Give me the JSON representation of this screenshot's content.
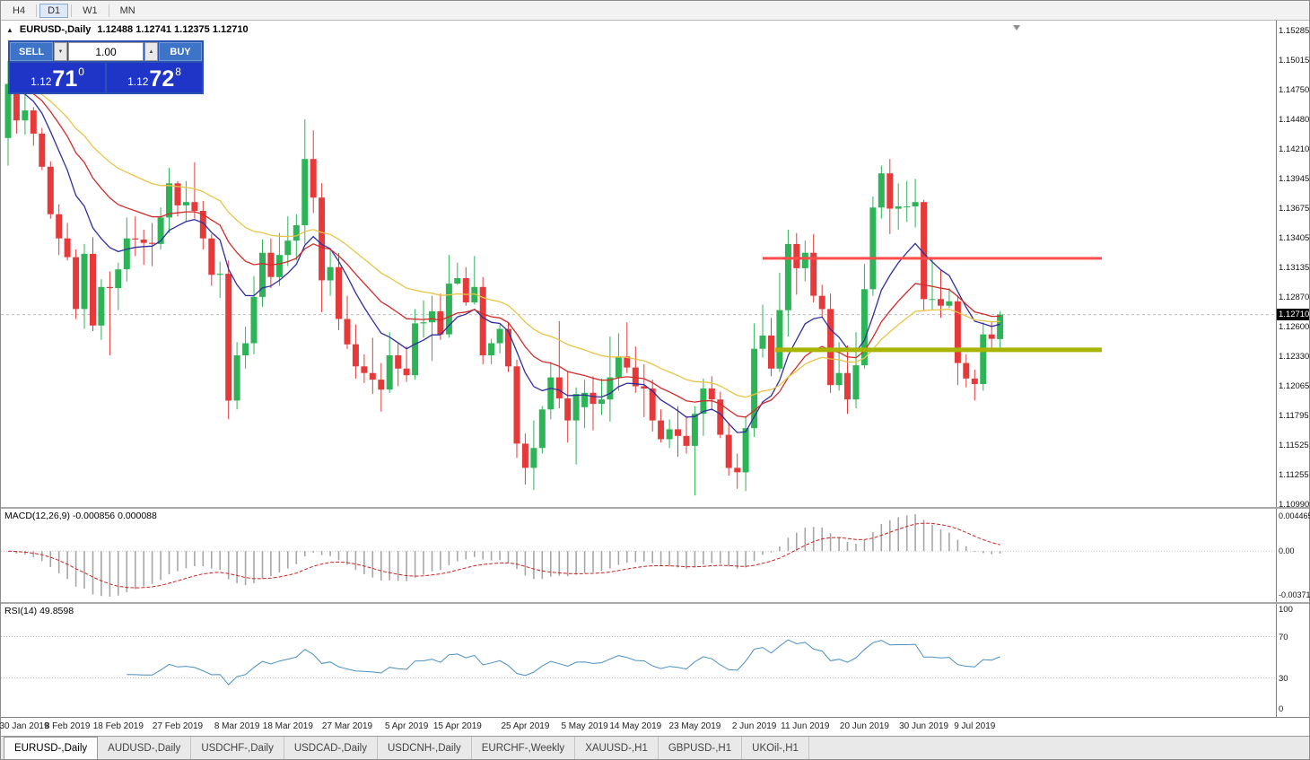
{
  "toolbar": {
    "timeframes": [
      {
        "label": "H4",
        "active": false
      },
      {
        "label": "D1",
        "active": true
      },
      {
        "label": "W1",
        "active": false
      },
      {
        "label": "MN",
        "active": false
      }
    ]
  },
  "chart_header": {
    "symbol_title": "EURUSD-,Daily",
    "ohlc": "1.12488 1.12741 1.12375 1.12710"
  },
  "trade_panel": {
    "sell_label": "SELL",
    "buy_label": "BUY",
    "volume": "1.00",
    "bid_small": "1.12",
    "bid_big": "71",
    "bid_sup": "0",
    "ask_small": "1.12",
    "ask_big": "72",
    "ask_sup": "8"
  },
  "chart_data": {
    "type": "candlestick",
    "symbol": "EURUSD-",
    "timeframe": "Daily",
    "current_price": 1.1271,
    "current_price_label": "1.12710",
    "candle_colors": {
      "up": "#2cb457",
      "down": "#e63a3a"
    },
    "y_axis": {
      "min": 1.1099,
      "max": 1.15285,
      "tick_labels": [
        "1.15285",
        "1.15015",
        "1.14750",
        "1.14480",
        "1.14210",
        "1.13945",
        "1.13675",
        "1.13405",
        "1.13135",
        "1.12870",
        "1.12600",
        "1.12330",
        "1.12065",
        "1.11795",
        "1.11525",
        "1.11255",
        "1.10990"
      ]
    },
    "x_ticks": [
      {
        "index": 0,
        "label": "30 Jan 2019"
      },
      {
        "index": 7,
        "label": "8 Feb 2019"
      },
      {
        "index": 13,
        "label": "18 Feb 2019"
      },
      {
        "index": 20,
        "label": "27 Feb 2019"
      },
      {
        "index": 27,
        "label": "8 Mar 2019"
      },
      {
        "index": 33,
        "label": "18 Mar 2019"
      },
      {
        "index": 40,
        "label": "27 Mar 2019"
      },
      {
        "index": 47,
        "label": "5 Apr 2019"
      },
      {
        "index": 53,
        "label": "15 Apr 2019"
      },
      {
        "index": 61,
        "label": "25 Apr 2019"
      },
      {
        "index": 68,
        "label": "5 May 2019"
      },
      {
        "index": 74,
        "label": "14 May 2019"
      },
      {
        "index": 81,
        "label": "23 May 2019"
      },
      {
        "index": 88,
        "label": "2 Jun 2019"
      },
      {
        "index": 94,
        "label": "11 Jun 2019"
      },
      {
        "index": 101,
        "label": "20 Jun 2019"
      },
      {
        "index": 108,
        "label": "30 Jun 2019"
      },
      {
        "index": 114,
        "label": "9 Jul 2019"
      }
    ],
    "ohlc": [
      [
        1.1431,
        1.1501,
        1.1406,
        1.148
      ],
      [
        1.148,
        1.1514,
        1.1435,
        1.1447
      ],
      [
        1.1447,
        1.1489,
        1.1434,
        1.1456
      ],
      [
        1.1456,
        1.1459,
        1.1424,
        1.1435
      ],
      [
        1.1435,
        1.144,
        1.1402,
        1.1405
      ],
      [
        1.1405,
        1.141,
        1.1358,
        1.1362
      ],
      [
        1.1362,
        1.1371,
        1.1325,
        1.134
      ],
      [
        1.134,
        1.1354,
        1.132,
        1.1323
      ],
      [
        1.1323,
        1.133,
        1.1267,
        1.1276
      ],
      [
        1.1276,
        1.1335,
        1.1258,
        1.1326
      ],
      [
        1.1326,
        1.1341,
        1.1256,
        1.1261
      ],
      [
        1.1261,
        1.1303,
        1.1248,
        1.1296
      ],
      [
        1.1296,
        1.131,
        1.1234,
        1.1295
      ],
      [
        1.1295,
        1.1318,
        1.1275,
        1.1312
      ],
      [
        1.1312,
        1.1359,
        1.1301,
        1.134
      ],
      [
        1.134,
        1.136,
        1.1324,
        1.1339
      ],
      [
        1.1339,
        1.1348,
        1.1316,
        1.1336
      ],
      [
        1.1336,
        1.1354,
        1.1315,
        1.1335
      ],
      [
        1.1335,
        1.1368,
        1.133,
        1.1359
      ],
      [
        1.1359,
        1.1404,
        1.1345,
        1.139
      ],
      [
        1.139,
        1.1392,
        1.136,
        1.137
      ],
      [
        1.137,
        1.1392,
        1.1355,
        1.1373
      ],
      [
        1.1373,
        1.1409,
        1.1358,
        1.1365
      ],
      [
        1.1365,
        1.1374,
        1.133,
        1.134
      ],
      [
        1.134,
        1.1344,
        1.1297,
        1.1307
      ],
      [
        1.1307,
        1.1319,
        1.1286,
        1.1308
      ],
      [
        1.1308,
        1.132,
        1.1176,
        1.1193
      ],
      [
        1.1193,
        1.1246,
        1.1185,
        1.1234
      ],
      [
        1.1234,
        1.126,
        1.1222,
        1.1245
      ],
      [
        1.1245,
        1.1306,
        1.1235,
        1.1287
      ],
      [
        1.1287,
        1.1339,
        1.1278,
        1.1327
      ],
      [
        1.1327,
        1.134,
        1.1295,
        1.1305
      ],
      [
        1.1305,
        1.1345,
        1.1297,
        1.1325
      ],
      [
        1.1325,
        1.136,
        1.1315,
        1.1338
      ],
      [
        1.1338,
        1.1362,
        1.132,
        1.1352
      ],
      [
        1.1352,
        1.1448,
        1.1335,
        1.1412
      ],
      [
        1.1412,
        1.1438,
        1.1363,
        1.1377
      ],
      [
        1.1377,
        1.139,
        1.1273,
        1.1302
      ],
      [
        1.1302,
        1.133,
        1.1288,
        1.1314
      ],
      [
        1.1314,
        1.1327,
        1.1257,
        1.1267
      ],
      [
        1.1267,
        1.1288,
        1.124,
        1.1244
      ],
      [
        1.1244,
        1.1262,
        1.1213,
        1.1224
      ],
      [
        1.1224,
        1.1235,
        1.1209,
        1.1218
      ],
      [
        1.1218,
        1.125,
        1.1199,
        1.1212
      ],
      [
        1.1212,
        1.1227,
        1.1183,
        1.1203
      ],
      [
        1.1203,
        1.1255,
        1.12,
        1.1234
      ],
      [
        1.1234,
        1.1245,
        1.1206,
        1.1222
      ],
      [
        1.1222,
        1.1242,
        1.121,
        1.1216
      ],
      [
        1.1216,
        1.1276,
        1.1212,
        1.1263
      ],
      [
        1.1263,
        1.1284,
        1.125,
        1.1264
      ],
      [
        1.1264,
        1.1288,
        1.1229,
        1.1274
      ],
      [
        1.1274,
        1.129,
        1.1248,
        1.1253
      ],
      [
        1.1253,
        1.1325,
        1.125,
        1.1299
      ],
      [
        1.1299,
        1.1318,
        1.1298,
        1.1304
      ],
      [
        1.1304,
        1.1314,
        1.1279,
        1.1282
      ],
      [
        1.1282,
        1.1324,
        1.128,
        1.1296
      ],
      [
        1.1296,
        1.1305,
        1.1226,
        1.1234
      ],
      [
        1.1234,
        1.1249,
        1.1226,
        1.1245
      ],
      [
        1.1245,
        1.1262,
        1.1236,
        1.1258
      ],
      [
        1.1258,
        1.1264,
        1.1219,
        1.1224
      ],
      [
        1.1224,
        1.123,
        1.1141,
        1.1154
      ],
      [
        1.1154,
        1.1163,
        1.1117,
        1.1132
      ],
      [
        1.1132,
        1.1175,
        1.1112,
        1.115
      ],
      [
        1.115,
        1.1188,
        1.1145,
        1.1185
      ],
      [
        1.1185,
        1.1228,
        1.1176,
        1.1214
      ],
      [
        1.1214,
        1.1265,
        1.1186,
        1.1195
      ],
      [
        1.1195,
        1.122,
        1.1155,
        1.1175
      ],
      [
        1.1175,
        1.1205,
        1.1135,
        1.1199
      ],
      [
        1.1187,
        1.1212,
        1.1168,
        1.12
      ],
      [
        1.12,
        1.1215,
        1.1166,
        1.119
      ],
      [
        1.119,
        1.1213,
        1.118,
        1.1194
      ],
      [
        1.1194,
        1.1251,
        1.1174,
        1.1214
      ],
      [
        1.1214,
        1.1254,
        1.1202,
        1.1233
      ],
      [
        1.1233,
        1.1264,
        1.1218,
        1.1223
      ],
      [
        1.1223,
        1.1242,
        1.12,
        1.1206
      ],
      [
        1.1206,
        1.1226,
        1.1178,
        1.1204
      ],
      [
        1.1204,
        1.1212,
        1.1165,
        1.1175
      ],
      [
        1.1175,
        1.1185,
        1.1155,
        1.1158
      ],
      [
        1.1158,
        1.1176,
        1.115,
        1.1167
      ],
      [
        1.1167,
        1.1188,
        1.1142,
        1.1161
      ],
      [
        1.1161,
        1.1179,
        1.1145,
        1.1152
      ],
      [
        1.1152,
        1.1188,
        1.1107,
        1.1181
      ],
      [
        1.1181,
        1.1213,
        1.1161,
        1.1204
      ],
      [
        1.1204,
        1.1215,
        1.1184,
        1.1194
      ],
      [
        1.1194,
        1.1201,
        1.1159,
        1.1162
      ],
      [
        1.1162,
        1.1173,
        1.1125,
        1.1132
      ],
      [
        1.1132,
        1.1145,
        1.1113,
        1.1128
      ],
      [
        1.1128,
        1.1179,
        1.1111,
        1.1168
      ],
      [
        1.1168,
        1.1263,
        1.116,
        1.124
      ],
      [
        1.124,
        1.128,
        1.1232,
        1.1252
      ],
      [
        1.1252,
        1.1268,
        1.1215,
        1.1222
      ],
      [
        1.1222,
        1.1309,
        1.1219,
        1.1275
      ],
      [
        1.1275,
        1.1348,
        1.1251,
        1.1335
      ],
      [
        1.1335,
        1.1345,
        1.1289,
        1.1313
      ],
      [
        1.1313,
        1.1338,
        1.1301,
        1.1327
      ],
      [
        1.1327,
        1.1344,
        1.1282,
        1.1288
      ],
      [
        1.1288,
        1.1298,
        1.1268,
        1.1276
      ],
      [
        1.1276,
        1.129,
        1.12,
        1.1207
      ],
      [
        1.1207,
        1.1246,
        1.1202,
        1.1218
      ],
      [
        1.1218,
        1.1243,
        1.1181,
        1.1194
      ],
      [
        1.1194,
        1.1255,
        1.1186,
        1.1225
      ],
      [
        1.1225,
        1.1317,
        1.1222,
        1.1294
      ],
      [
        1.1294,
        1.1378,
        1.1288,
        1.1368
      ],
      [
        1.1368,
        1.1406,
        1.1358,
        1.1399
      ],
      [
        1.1399,
        1.1412,
        1.1344,
        1.1367
      ],
      [
        1.1367,
        1.139,
        1.1348,
        1.1369
      ],
      [
        1.1369,
        1.1392,
        1.1355,
        1.1369
      ],
      [
        1.1369,
        1.1394,
        1.135,
        1.1373
      ],
      [
        1.1373,
        1.1375,
        1.1275,
        1.1285
      ],
      [
        1.1285,
        1.1322,
        1.1275,
        1.1285
      ],
      [
        1.1285,
        1.1312,
        1.1268,
        1.1279
      ],
      [
        1.1279,
        1.1295,
        1.1277,
        1.1283
      ],
      [
        1.1283,
        1.1288,
        1.1207,
        1.1227
      ],
      [
        1.1227,
        1.1235,
        1.1205,
        1.1213
      ],
      [
        1.1213,
        1.1221,
        1.1193,
        1.1208
      ],
      [
        1.1208,
        1.1264,
        1.1202,
        1.1253
      ],
      [
        1.1253,
        1.1265,
        1.124,
        1.1249
      ],
      [
        1.12488,
        1.12741,
        1.12375,
        1.1271
      ]
    ],
    "overlays": {
      "moving_averages": [
        {
          "name": "ma-fast-blue",
          "period": 10,
          "color": "#2f2f9e"
        },
        {
          "name": "ma-mid-red",
          "period": 20,
          "color": "#d42a2a"
        },
        {
          "name": "ma-slow-yellow",
          "period": 34,
          "color": "#e8c546"
        }
      ],
      "hlines": [
        {
          "name": "resistance-line",
          "price": 1.1322,
          "color": "#ff4d4d",
          "width": 3,
          "from_index": 89,
          "to_index": 129
        },
        {
          "name": "support-line",
          "price": 1.1239,
          "color": "#a8b400",
          "width": 5,
          "from_index": 90.5,
          "to_index": 129
        }
      ]
    },
    "indicators": [
      {
        "type": "macd",
        "label": "MACD(12,26,9) -0.000856 0.000088",
        "params": [
          12,
          26,
          9
        ],
        "main_value": "-0.000856",
        "signal_value": "0.000088",
        "axis_labels": [
          "0.004465",
          "0.00",
          "-0.00371"
        ],
        "histogram_color": "#a6a6a6",
        "signal_color": "#cc2222"
      },
      {
        "type": "rsi",
        "label": "RSI(14) 49.8598",
        "period": 14,
        "value": "49.8598",
        "axis_labels": [
          "100",
          "70",
          "30",
          "0"
        ],
        "levels": [
          70,
          30
        ],
        "line_color": "#4a8fc0"
      }
    ]
  },
  "date_axis_note": "labels rendered from chart_data.x_ticks",
  "tabs": [
    {
      "label": "EURUSD-,Daily",
      "active": true
    },
    {
      "label": "AUDUSD-,Daily",
      "active": false
    },
    {
      "label": "USDCHF-,Daily",
      "active": false
    },
    {
      "label": "USDCAD-,Daily",
      "active": false
    },
    {
      "label": "USDCNH-,Daily",
      "active": false
    },
    {
      "label": "EURCHF-,Weekly",
      "active": false
    },
    {
      "label": "XAUUSD-,H1",
      "active": false
    },
    {
      "label": "GBPUSD-,H1",
      "active": false
    },
    {
      "label": "UKOil-,H1",
      "active": false
    }
  ]
}
